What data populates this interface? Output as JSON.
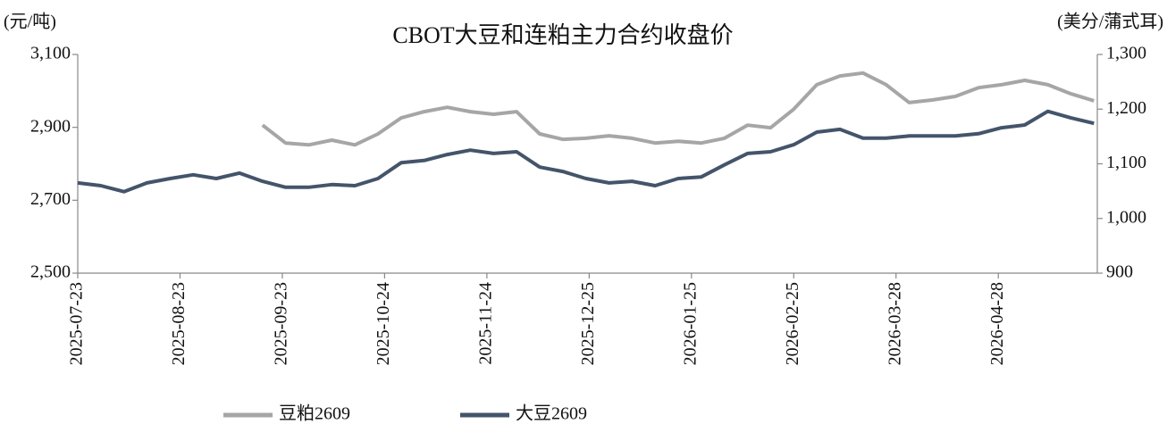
{
  "chart_data": {
    "type": "line",
    "title": "CBOT大豆和连粕主力合约收盘价",
    "y_label": "(元/吨)",
    "y2_label": "(美分/蒲式耳)",
    "x": [
      "2025-07-23",
      "2025-07-30",
      "2025-08-06",
      "2025-08-13",
      "2025-08-20",
      "2025-08-27",
      "2025-09-03",
      "2025-09-10",
      "2025-09-17",
      "2025-09-24",
      "2025-10-01",
      "2025-10-08",
      "2025-10-15",
      "2025-10-22",
      "2025-10-29",
      "2025-11-05",
      "2025-11-12",
      "2025-11-19",
      "2025-11-26",
      "2025-12-03",
      "2025-12-10",
      "2025-12-17",
      "2025-12-24",
      "2025-12-31",
      "2026-01-07",
      "2026-01-14",
      "2026-01-21",
      "2026-01-28",
      "2026-02-04",
      "2026-02-11",
      "2026-02-18",
      "2026-02-25",
      "2026-03-04",
      "2026-03-11",
      "2026-03-18",
      "2026-03-25",
      "2026-04-01",
      "2026-04-08",
      "2026-04-15",
      "2026-04-22",
      "2026-04-29",
      "2026-05-06",
      "2026-05-13",
      "2026-05-20",
      "2026-05-27"
    ],
    "series": [
      {
        "name": "豆粕2609",
        "color": "#a6a6a6",
        "axis": "y",
        "values": [
          null,
          null,
          null,
          null,
          null,
          null,
          null,
          null,
          2906,
          2857,
          2852,
          2865,
          2852,
          2882,
          2926,
          2943,
          2955,
          2943,
          2936,
          2943,
          2882,
          2867,
          2870,
          2877,
          2870,
          2857,
          2862,
          2857,
          2870,
          2906,
          2899,
          2950,
          3017,
          3041,
          3049,
          3017,
          2968,
          2975,
          2985,
          3009,
          3017,
          3029,
          3017,
          2992,
          2973
        ]
      },
      {
        "name": "大豆2609",
        "color": "#44546a",
        "axis": "y2",
        "values": [
          1065,
          1060,
          1049,
          1065,
          1073,
          1080,
          1073,
          1083,
          1068,
          1057,
          1057,
          1062,
          1060,
          1073,
          1102,
          1106,
          1117,
          1125,
          1119,
          1122,
          1094,
          1086,
          1073,
          1065,
          1068,
          1060,
          1073,
          1076,
          1098,
          1119,
          1122,
          1135,
          1158,
          1163,
          1147,
          1147,
          1151,
          1151,
          1151,
          1155,
          1166,
          1171,
          1196,
          1184,
          1174
        ]
      }
    ],
    "xlim": [
      "2025-07-23",
      "2026-05-28"
    ],
    "xticks": [
      "2025-07-23",
      "2025-08-23",
      "2025-09-23",
      "2025-10-24",
      "2025-11-24",
      "2025-12-25",
      "2026-01-25",
      "2026-02-25",
      "2026-03-28",
      "2026-04-28"
    ],
    "ylim": [
      2500,
      3100
    ],
    "yticks": [
      {
        "value": 2500,
        "label": "2,500"
      },
      {
        "value": 2700,
        "label": "2,700"
      },
      {
        "value": 2900,
        "label": "2,900"
      },
      {
        "value": 3100,
        "label": "3,100"
      }
    ],
    "y2lim": [
      900,
      1300
    ],
    "y2ticks": [
      900,
      {
        "value": 1000,
        "label": "1,000"
      },
      {
        "value": 1100,
        "label": "1,100"
      },
      {
        "value": 1200,
        "label": "1,200"
      },
      {
        "value": 1300,
        "label": "1,300"
      }
    ],
    "legend": "bottom"
  }
}
